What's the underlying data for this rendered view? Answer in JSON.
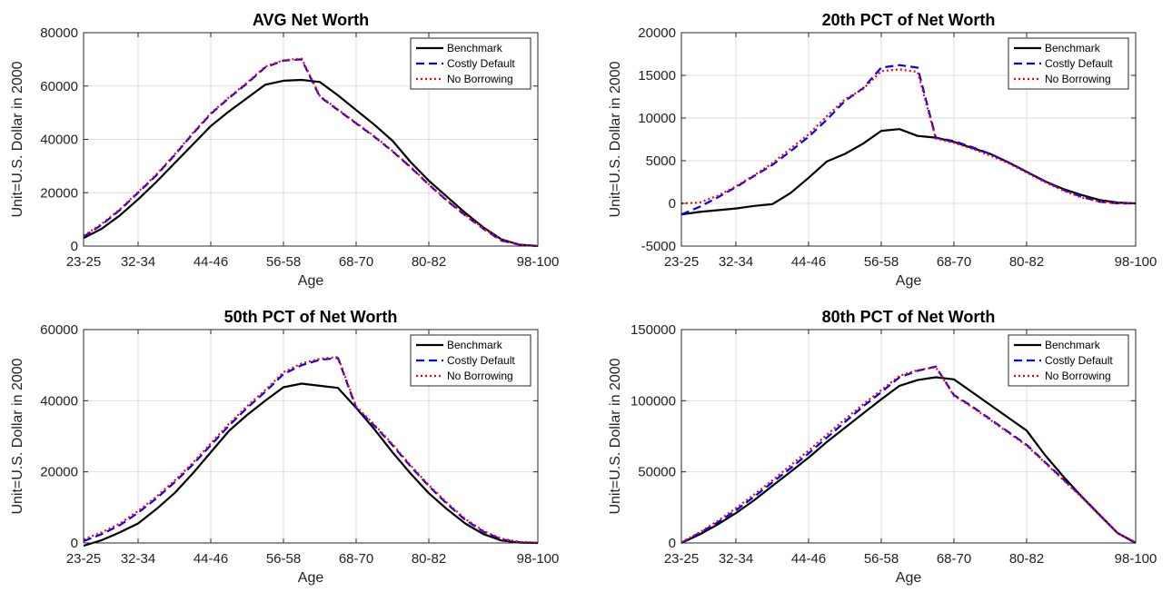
{
  "chart_data": [
    {
      "type": "line",
      "title": "AVG Net Worth",
      "xlabel": "Age",
      "ylabel": "Unit=U.S. Dollar in 2000",
      "x_tick_labels": [
        "23-25",
        "32-34",
        "44-46",
        "56-58",
        "68-70",
        "80-82",
        "98-100"
      ],
      "x_tick_groups": [
        1,
        4,
        8,
        12,
        16,
        20,
        26
      ],
      "x_range": [
        1,
        26
      ],
      "ylim": [
        0,
        80000
      ],
      "y_ticks": [
        0,
        20000,
        40000,
        60000,
        80000
      ],
      "y_tick_labels": [
        "0",
        "20000",
        "40000",
        "60000",
        "80000"
      ],
      "grid": true,
      "legend": "top-right",
      "x": [
        1,
        2,
        3,
        4,
        5,
        6,
        7,
        8,
        9,
        10,
        11,
        12,
        13,
        14,
        15,
        16,
        17,
        18,
        19,
        20,
        21,
        22,
        23,
        24,
        25,
        26
      ],
      "series": [
        {
          "name": "Benchmark",
          "color": "#000000",
          "style": "solid",
          "values": [
            3000,
            6500,
            11500,
            17500,
            24000,
            31000,
            38000,
            45000,
            50500,
            55500,
            60500,
            62000,
            62300,
            61500,
            56500,
            51000,
            45500,
            39500,
            31500,
            24500,
            18500,
            12500,
            7000,
            2500,
            500,
            0
          ]
        },
        {
          "name": "Costly Default",
          "color": "#0000ff",
          "style": "dashed",
          "values": [
            3500,
            8000,
            13500,
            20000,
            26500,
            34000,
            42000,
            49500,
            55500,
            61000,
            67000,
            69500,
            70000,
            56000,
            51000,
            46000,
            41000,
            35500,
            29500,
            23000,
            17000,
            11500,
            6500,
            2000,
            500,
            0
          ]
        },
        {
          "name": "No Borrowing",
          "color": "#ff0000",
          "style": "dotted",
          "values": [
            3800,
            8300,
            13800,
            20300,
            26800,
            34300,
            42300,
            49800,
            55800,
            61300,
            67300,
            69700,
            70300,
            56300,
            51200,
            46200,
            41200,
            35700,
            29700,
            23200,
            17200,
            11700,
            6700,
            2200,
            600,
            0
          ]
        }
      ]
    },
    {
      "type": "line",
      "title": "20th PCT of Net Worth",
      "xlabel": "Age",
      "ylabel": "Unit=U.S. Dollar in 2000",
      "x_tick_labels": [
        "23-25",
        "32-34",
        "44-46",
        "56-58",
        "68-70",
        "80-82",
        "98-100"
      ],
      "x_tick_groups": [
        1,
        4,
        8,
        12,
        16,
        20,
        26
      ],
      "x_range": [
        1,
        26
      ],
      "ylim": [
        -5000,
        20000
      ],
      "y_ticks": [
        -5000,
        0,
        5000,
        10000,
        15000,
        20000
      ],
      "y_tick_labels": [
        "-5000",
        "0",
        "5000",
        "10000",
        "15000",
        "20000"
      ],
      "grid": true,
      "legend": "top-right",
      "x": [
        1,
        2,
        3,
        4,
        5,
        6,
        7,
        8,
        9,
        10,
        11,
        12,
        13,
        14,
        15,
        16,
        17,
        18,
        19,
        20,
        21,
        22,
        23,
        24,
        25,
        26
      ],
      "series": [
        {
          "name": "Benchmark",
          "color": "#000000",
          "style": "solid",
          "values": [
            -1300,
            -1000,
            -800,
            -600,
            -300,
            -100,
            1200,
            3000,
            4900,
            5800,
            7000,
            8500,
            8700,
            7900,
            7700,
            7200,
            6500,
            5800,
            4800,
            3700,
            2600,
            1700,
            1000,
            400,
            100,
            0
          ]
        },
        {
          "name": "Costly Default",
          "color": "#0000ff",
          "style": "dashed",
          "values": [
            -1300,
            -400,
            700,
            1900,
            3200,
            4500,
            6100,
            7800,
            9800,
            12000,
            13500,
            15900,
            16200,
            15900,
            7700,
            7300,
            6600,
            5800,
            4800,
            3700,
            2600,
            1600,
            800,
            200,
            0,
            0
          ]
        },
        {
          "name": "No Borrowing",
          "color": "#ff0000",
          "style": "dotted",
          "values": [
            0,
            100,
            900,
            2000,
            3300,
            4700,
            6400,
            8100,
            10200,
            12200,
            13400,
            15500,
            15700,
            15400,
            7600,
            7100,
            6400,
            5600,
            4700,
            3600,
            2500,
            1500,
            700,
            200,
            0,
            0
          ]
        }
      ]
    },
    {
      "type": "line",
      "title": "50th PCT of Net Worth",
      "xlabel": "Age",
      "ylabel": "Unit=U.S. Dollar in 2000",
      "x_tick_labels": [
        "23-25",
        "32-34",
        "44-46",
        "56-58",
        "68-70",
        "80-82",
        "98-100"
      ],
      "x_tick_groups": [
        1,
        4,
        8,
        12,
        16,
        20,
        26
      ],
      "x_range": [
        1,
        26
      ],
      "ylim": [
        0,
        60000
      ],
      "y_ticks": [
        0,
        20000,
        40000,
        60000
      ],
      "y_tick_labels": [
        "0",
        "20000",
        "40000",
        "60000"
      ],
      "grid": true,
      "legend": "top-right",
      "x": [
        1,
        2,
        3,
        4,
        5,
        6,
        7,
        8,
        9,
        10,
        11,
        12,
        13,
        14,
        15,
        16,
        17,
        18,
        19,
        20,
        21,
        22,
        23,
        24,
        25,
        26
      ],
      "series": [
        {
          "name": "Benchmark",
          "color": "#000000",
          "style": "solid",
          "values": [
            -800,
            800,
            3000,
            5500,
            9500,
            14000,
            19500,
            25500,
            31500,
            36000,
            40000,
            43800,
            44800,
            44200,
            43600,
            38000,
            32000,
            25500,
            19500,
            14000,
            9500,
            5500,
            2500,
            700,
            100,
            0
          ]
        },
        {
          "name": "Costly Default",
          "color": "#0000ff",
          "style": "dashed",
          "values": [
            500,
            2500,
            5000,
            8500,
            12500,
            17000,
            22000,
            27500,
            33000,
            38000,
            42500,
            47500,
            50000,
            51500,
            52000,
            38000,
            33000,
            27500,
            21500,
            16000,
            11000,
            6500,
            3200,
            1000,
            200,
            0
          ]
        },
        {
          "name": "No Borrowing",
          "color": "#ff0000",
          "style": "dotted",
          "values": [
            1000,
            3000,
            5500,
            9000,
            13000,
            17500,
            22500,
            28000,
            33500,
            38500,
            43000,
            48000,
            50500,
            51800,
            52300,
            38400,
            33300,
            27800,
            21800,
            16300,
            11300,
            6800,
            3400,
            1200,
            300,
            100
          ]
        }
      ]
    },
    {
      "type": "line",
      "title": "80th PCT of Net Worth",
      "xlabel": "Age",
      "ylabel": "Unit=U.S. Dollar in 2000",
      "x_tick_labels": [
        "23-25",
        "32-34",
        "44-46",
        "56-58",
        "68-70",
        "80-82",
        "98-100"
      ],
      "x_tick_groups": [
        1,
        4,
        8,
        12,
        16,
        20,
        26
      ],
      "x_range": [
        1,
        26
      ],
      "ylim": [
        0,
        150000
      ],
      "y_ticks": [
        0,
        50000,
        100000,
        150000
      ],
      "y_tick_labels": [
        "0",
        "50000",
        "100000",
        "150000"
      ],
      "grid": true,
      "legend": "top-right",
      "x": [
        1,
        2,
        3,
        4,
        5,
        6,
        7,
        8,
        9,
        10,
        11,
        12,
        13,
        14,
        15,
        16,
        17,
        18,
        19,
        20,
        21,
        22,
        23,
        24,
        25,
        26
      ],
      "series": [
        {
          "name": "Benchmark",
          "color": "#000000",
          "style": "solid",
          "values": [
            0,
            6000,
            13000,
            21000,
            30000,
            40000,
            50000,
            60000,
            71000,
            81000,
            91000,
            101000,
            110500,
            114500,
            116500,
            115000,
            106000,
            97000,
            88000,
            79000,
            62000,
            47000,
            33000,
            20000,
            7000,
            0
          ]
        },
        {
          "name": "Costly Default",
          "color": "#0000ff",
          "style": "dashed",
          "values": [
            0,
            7000,
            14500,
            23000,
            32500,
            42500,
            52500,
            63000,
            74000,
            85000,
            96000,
            106000,
            116500,
            121000,
            124000,
            104000,
            96000,
            87000,
            78000,
            69000,
            57000,
            45000,
            33000,
            20000,
            7000,
            0
          ]
        },
        {
          "name": "No Borrowing",
          "color": "#ff0000",
          "style": "dotted",
          "values": [
            500,
            7500,
            15500,
            24500,
            34000,
            44000,
            54500,
            65000,
            76000,
            87000,
            97500,
            107500,
            117500,
            121500,
            123500,
            103500,
            95500,
            86500,
            77500,
            68500,
            56500,
            44500,
            32500,
            19500,
            7000,
            500
          ]
        }
      ]
    }
  ]
}
